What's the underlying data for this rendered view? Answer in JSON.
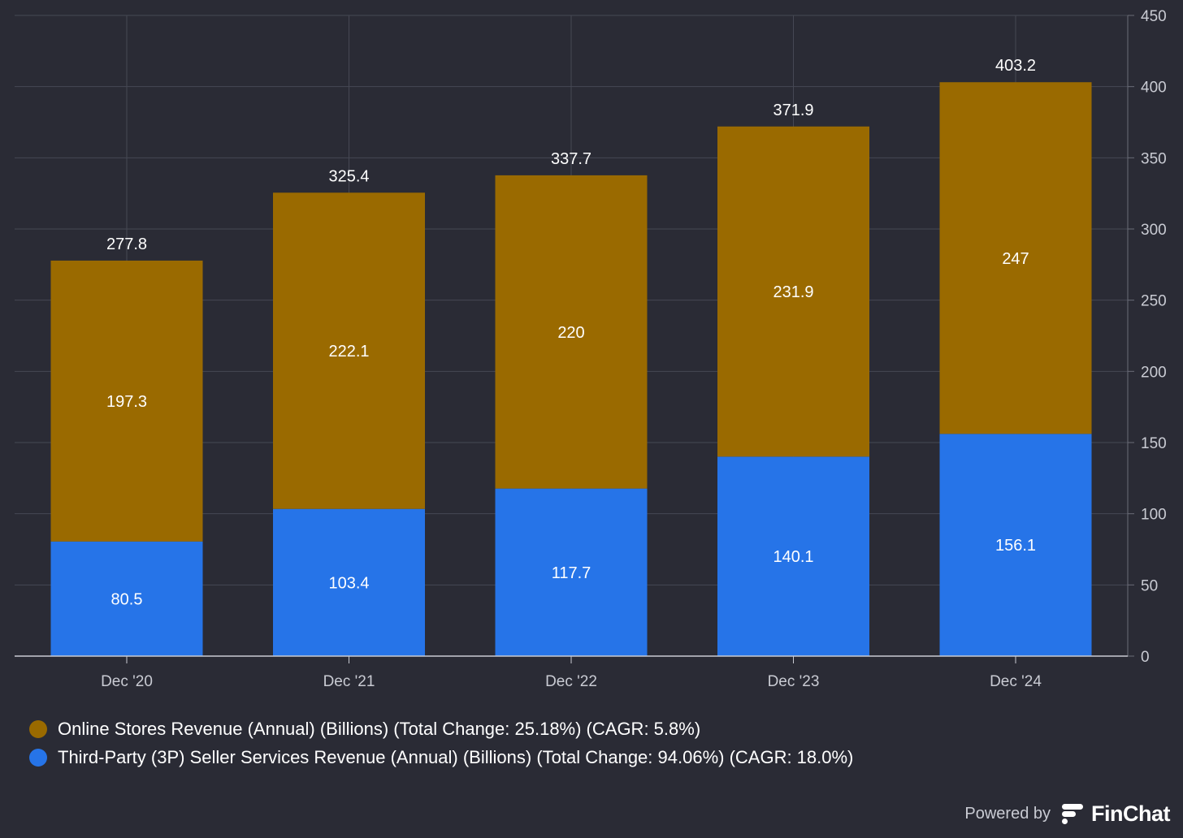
{
  "chart_data": {
    "type": "bar",
    "stacked": true,
    "categories": [
      "Dec '20",
      "Dec '21",
      "Dec '22",
      "Dec '23",
      "Dec '24"
    ],
    "series": [
      {
        "name": "Third-Party (3P) Seller Services Revenue (Annual) (Billions) (Total Change: 94.06%) (CAGR: 18.0%)",
        "color": "#2674e8",
        "values": [
          80.5,
          103.4,
          117.7,
          140.1,
          156.1
        ]
      },
      {
        "name": "Online Stores Revenue (Annual) (Billions) (Total Change: 25.18%) (CAGR: 5.8%)",
        "color": "#9a6a00",
        "values": [
          197.3,
          222.1,
          220,
          231.9,
          247
        ]
      }
    ],
    "totals": [
      277.8,
      325.4,
      337.7,
      371.9,
      403.2
    ],
    "yticks": [
      0,
      50,
      100,
      150,
      200,
      250,
      300,
      350,
      400,
      450
    ],
    "ylim": [
      0,
      450
    ],
    "yaxis_position": "right",
    "grid": true,
    "legend_position": "bottom-left",
    "legend_order": [
      1,
      0
    ]
  },
  "branding": {
    "powered_by": "Powered by",
    "brand": "FinChat"
  }
}
